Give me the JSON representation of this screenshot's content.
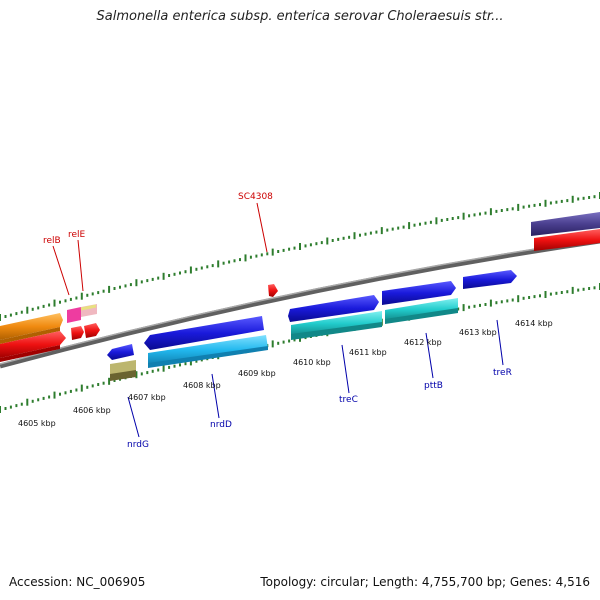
{
  "title": "Salmonella enterica subsp. enterica serovar Choleraesuis str...",
  "footer": {
    "accession": "Accession: NC_006905",
    "summary": "Topology: circular; Length: 4,755,700 bp; Genes: 4,516"
  },
  "kbp_labels": [
    "4605 kbp",
    "4606 kbp",
    "4607 kbp",
    "4608 kbp",
    "4609 kbp",
    "4610 kbp",
    "4611 kbp",
    "4612 kbp",
    "4613 kbp",
    "4614 kbp"
  ],
  "gene_labels": {
    "relB": "relB",
    "relE": "relE",
    "sc4308": "SC4308",
    "nrdG": "nrdG",
    "nrdD": "nrdD",
    "treC": "treC",
    "pttB": "pttB",
    "treR": "treR"
  },
  "colors": {
    "backbone": "#808080",
    "tick": "#2e7d2e",
    "cds_blue": "#1a1adb",
    "cds_red": "#ee1111",
    "cds_orange": "#f08a10",
    "cds_cyan": "#22cccc",
    "cds_lightblue": "#22b8ee",
    "cds_purple": "#4a3f8f",
    "cds_pink": "#ee3ca0",
    "cds_khaki": "#bcb66e",
    "label_red": "#cc0000",
    "label_blue": "#0000aa"
  }
}
